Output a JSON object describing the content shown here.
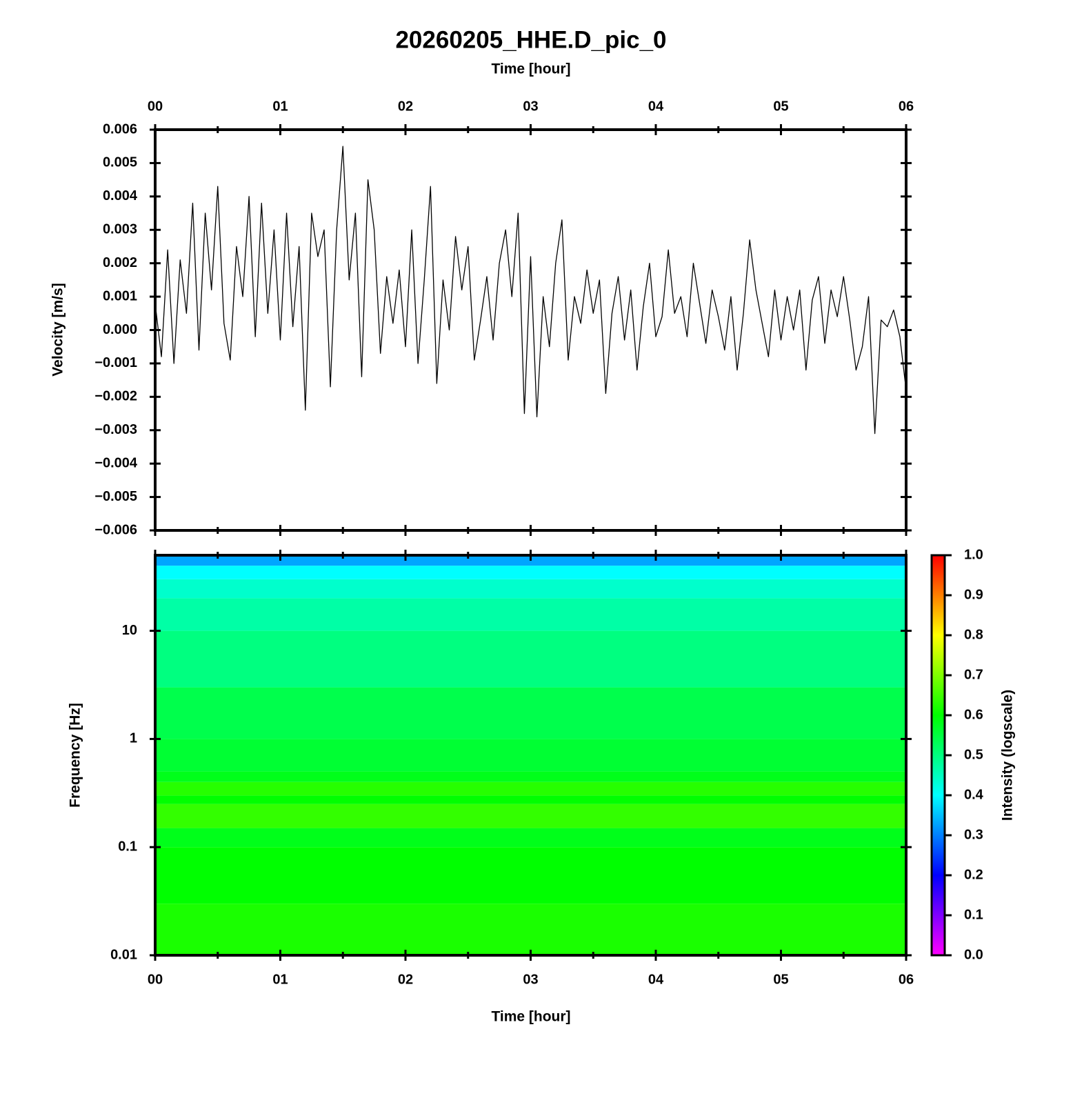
{
  "chart_data": [
    {
      "type": "line",
      "title": "20260205_HHE.D_pic_0",
      "xlabel": "Time [hour]",
      "ylabel": "Velocity [m/s]",
      "color": "#000000",
      "xlim": [
        0,
        6
      ],
      "xticks": [
        {
          "value": 0,
          "label": "00"
        },
        {
          "value": 1,
          "label": "01"
        },
        {
          "value": 2,
          "label": "02"
        },
        {
          "value": 3,
          "label": "03"
        },
        {
          "value": 4,
          "label": "04"
        },
        {
          "value": 5,
          "label": "05"
        },
        {
          "value": 6,
          "label": "06"
        }
      ],
      "ylim": [
        -0.006,
        0.006
      ],
      "yticks": [
        0.006,
        0.005,
        0.004,
        0.003,
        0.002,
        0.001,
        {
          "value": 0,
          "label": "0.000"
        },
        {
          "value": -0.001,
          "label": "−0.001"
        },
        {
          "value": -0.002,
          "label": "−0.002"
        },
        {
          "value": -0.003,
          "label": "−0.003"
        },
        {
          "value": -0.004,
          "label": "−0.004"
        },
        {
          "value": -0.005,
          "label": "−0.005"
        },
        {
          "value": -0.006,
          "label": "−0.006"
        }
      ],
      "x": [
        0,
        0.05,
        0.1,
        0.15,
        0.2,
        0.25,
        0.3,
        0.35,
        0.4,
        0.45,
        0.5,
        0.55,
        0.6,
        0.65,
        0.7,
        0.75,
        0.8,
        0.85,
        0.9,
        0.95,
        1,
        1.05,
        1.1,
        1.15,
        1.2,
        1.25,
        1.3,
        1.35,
        1.4,
        1.45,
        1.5,
        1.55,
        1.6,
        1.65,
        1.7,
        1.75,
        1.8,
        1.85,
        1.9,
        1.95,
        2,
        2.05,
        2.1,
        2.15,
        2.2,
        2.25,
        2.3,
        2.35,
        2.4,
        2.45,
        2.5,
        2.55,
        2.6,
        2.65,
        2.7,
        2.75,
        2.8,
        2.85,
        2.9,
        2.95,
        3,
        3.05,
        3.1,
        3.15,
        3.2,
        3.25,
        3.3,
        3.35,
        3.4,
        3.45,
        3.5,
        3.55,
        3.6,
        3.65,
        3.7,
        3.75,
        3.8,
        3.85,
        3.9,
        3.95,
        4,
        4.05,
        4.1,
        4.15,
        4.2,
        4.25,
        4.3,
        4.35,
        4.4,
        4.45,
        4.5,
        4.55,
        4.6,
        4.65,
        4.7,
        4.75,
        4.8,
        4.85,
        4.9,
        4.95,
        5,
        5.05,
        5.1,
        5.15,
        5.2,
        5.25,
        5.3,
        5.35,
        5.4,
        5.45,
        5.5,
        5.55,
        5.6,
        5.65,
        5.7,
        5.75,
        5.8,
        5.85,
        5.9,
        5.95,
        6
      ],
      "values": [
        0.0008,
        -0.0008,
        0.0024,
        -0.001,
        0.0021,
        0.0005,
        0.0038,
        -0.0006,
        0.0035,
        0.0012,
        0.0043,
        0.0002,
        -0.0009,
        0.0025,
        0.001,
        0.004,
        -0.0002,
        0.0038,
        0.0005,
        0.003,
        -0.0003,
        0.0035,
        0.0001,
        0.0025,
        -0.0024,
        0.0035,
        0.0022,
        0.003,
        -0.0017,
        0.003,
        0.0055,
        0.0015,
        0.0035,
        -0.0014,
        0.0045,
        0.003,
        -0.0007,
        0.0016,
        0.0002,
        0.0018,
        -0.0005,
        0.003,
        -0.001,
        0.0015,
        0.0043,
        -0.0016,
        0.0015,
        0,
        0.0028,
        0.0012,
        0.0025,
        -0.0009,
        0.0003,
        0.0016,
        -0.0003,
        0.002,
        0.003,
        0.001,
        0.0035,
        -0.0025,
        0.0022,
        -0.0026,
        0.001,
        -0.0005,
        0.002,
        0.0033,
        -0.0009,
        0.001,
        0.0002,
        0.0018,
        0.0005,
        0.0015,
        -0.0019,
        0.0005,
        0.0016,
        -0.0003,
        0.0012,
        -0.0012,
        0.0007,
        0.002,
        -0.0002,
        0.0004,
        0.0024,
        0.0005,
        0.001,
        -0.0002,
        0.002,
        0.0008,
        -0.0004,
        0.0012,
        0.0004,
        -0.0006,
        0.001,
        -0.0012,
        0.0005,
        0.0027,
        0.0012,
        0.0002,
        -0.0008,
        0.0012,
        -0.0003,
        0.001,
        0,
        0.0012,
        -0.0012,
        0.0009,
        0.0016,
        -0.0004,
        0.0012,
        0.0004,
        0.0016,
        0.0003,
        -0.0012,
        -0.0005,
        0.001,
        -0.0031,
        0.0003,
        0.0001,
        0.0006,
        -0.0002,
        -0.0018
      ]
    },
    {
      "type": "heatmap",
      "xlabel": "Time [hour]",
      "ylabel": "Frequency [Hz]",
      "xlim": [
        0,
        6
      ],
      "xticks": [
        {
          "value": 0,
          "label": "00"
        },
        {
          "value": 1,
          "label": "01"
        },
        {
          "value": 2,
          "label": "02"
        },
        {
          "value": 3,
          "label": "03"
        },
        {
          "value": 4,
          "label": "04"
        },
        {
          "value": 5,
          "label": "05"
        },
        {
          "value": 6,
          "label": "06"
        }
      ],
      "yscale": "log",
      "ylim": [
        0.01,
        50
      ],
      "yticks": [
        0.01,
        0.1,
        1,
        10
      ],
      "ybins": [
        0.01,
        0.03,
        0.1,
        0.15,
        0.25,
        0.3,
        0.4,
        0.5,
        1,
        3,
        10,
        20,
        30,
        40,
        50
      ],
      "values": [
        0.62,
        0.6,
        0.58,
        0.64,
        0.6,
        0.63,
        0.58,
        0.56,
        0.54,
        0.5,
        0.47,
        0.44,
        0.4,
        0.33
      ],
      "colorbar": {
        "label": "Intensity (logscale)",
        "clim": [
          0,
          1
        ],
        "cticks": [
          {
            "value": 0,
            "label": "0.0"
          },
          0.1,
          0.2,
          0.3,
          0.4,
          0.5,
          0.6,
          0.7,
          0.8,
          0.9,
          {
            "value": 1,
            "label": "1.0"
          }
        ],
        "colors": [
          "#ff00ff",
          "#0000ff",
          "#00ffff",
          "#00ff00",
          "#ffff00",
          "#ff0000"
        ]
      }
    }
  ]
}
